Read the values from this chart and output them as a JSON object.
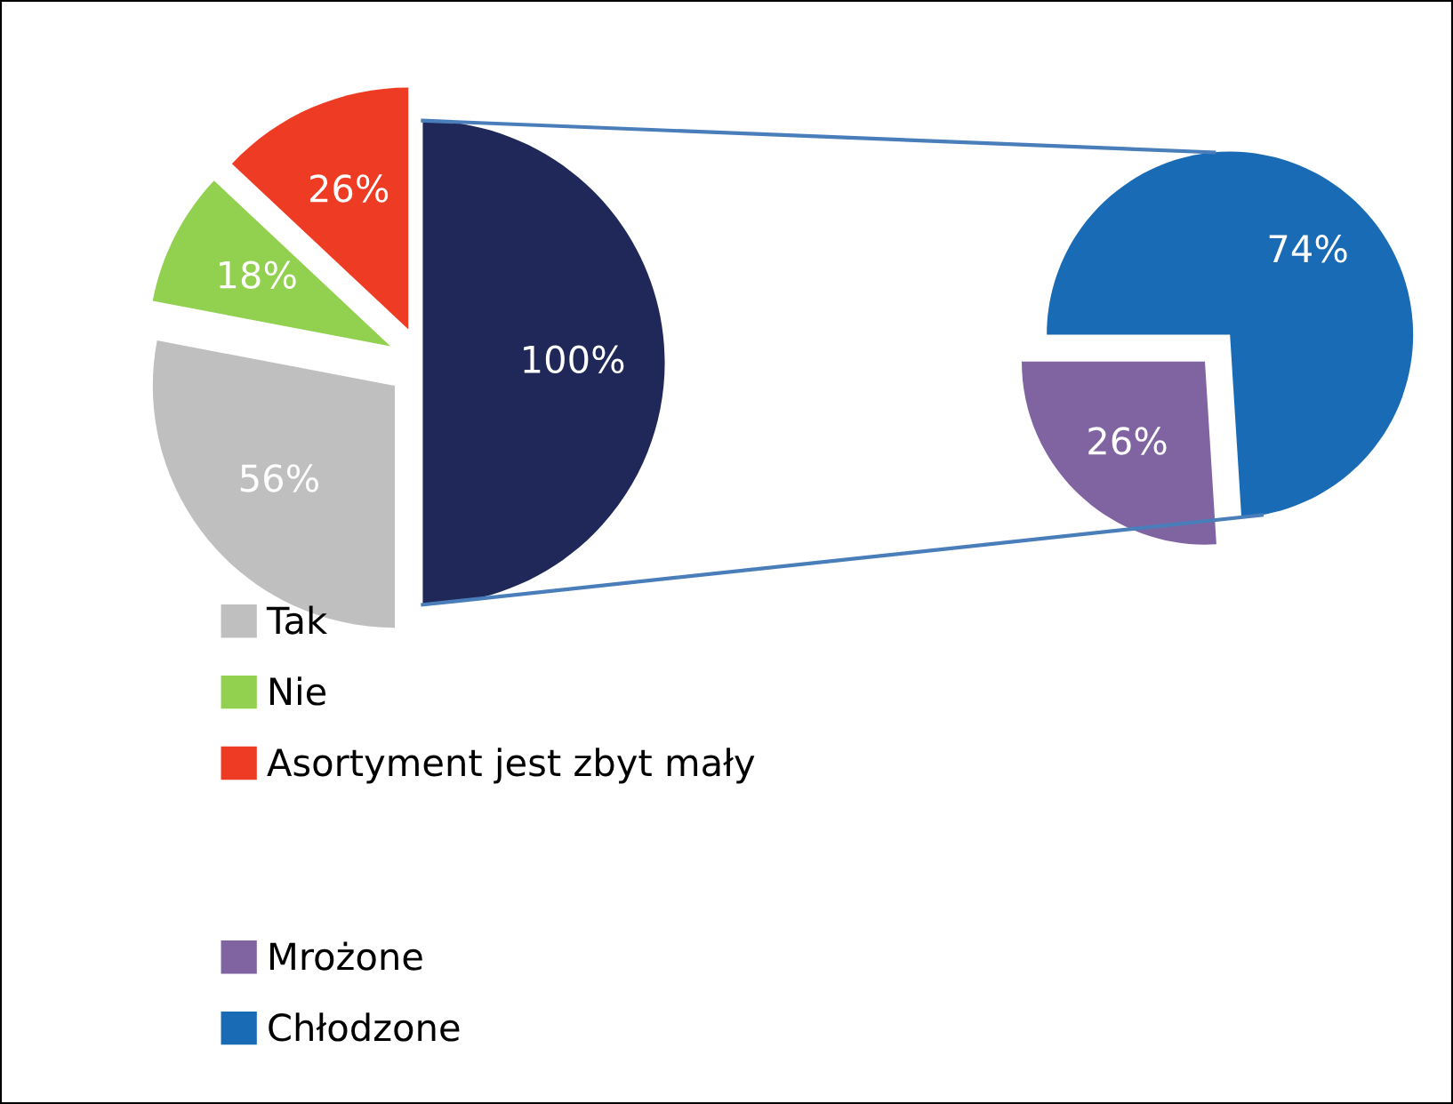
{
  "chart_data": [
    {
      "type": "pie",
      "categories": [
        "Tak",
        "Nie",
        "Asortyment jest zbyt mały",
        null
      ],
      "values": [
        56,
        18,
        26,
        100
      ],
      "colors": [
        "#bfbfbf",
        "#92d050",
        "#ee3b24",
        "#1f2858"
      ],
      "value_labels": [
        "56%",
        "18%",
        "26%",
        "100%"
      ],
      "legend": "bottom"
    },
    {
      "type": "pie",
      "categories": [
        "Mrożone",
        "Chłodzone"
      ],
      "values": [
        26,
        74
      ],
      "colors": [
        "#8064a2",
        "#1a6bb5"
      ],
      "value_labels": [
        "26%",
        "74%"
      ],
      "legend": "bottom left"
    }
  ]
}
